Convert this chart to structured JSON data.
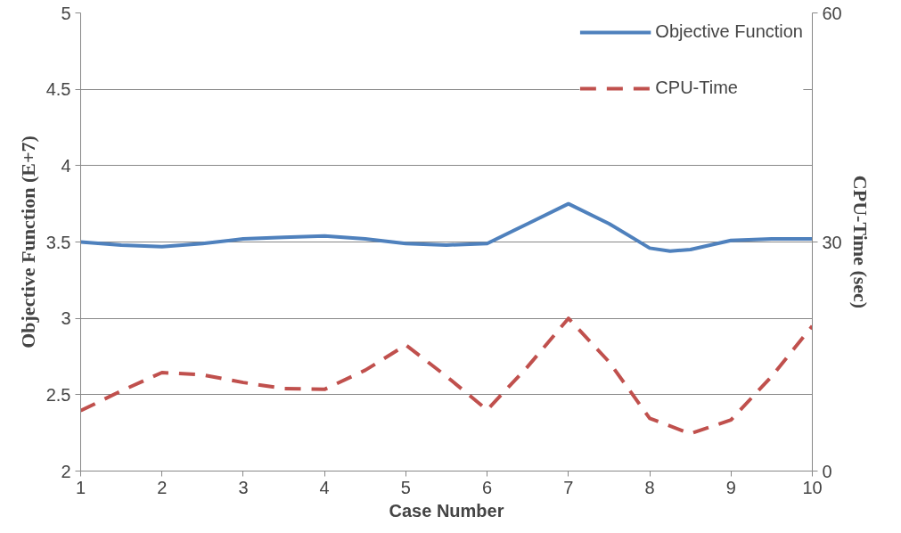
{
  "chart_data": {
    "type": "line",
    "xlabel": "Case Number",
    "ylabel": "Objective Function (E+7)",
    "y2label": "CPU-Time (sec)",
    "x": [
      1,
      1.5,
      2,
      2.5,
      3,
      3.5,
      4,
      4.5,
      5,
      5.5,
      6,
      6.5,
      7,
      7.5,
      8,
      8.25,
      8.5,
      9,
      9.5,
      10
    ],
    "series": [
      {
        "name": "Objective Function",
        "color": "#4f81bd",
        "line_style": "solid",
        "values": [
          3.5,
          3.48,
          3.47,
          3.49,
          3.52,
          3.53,
          3.54,
          3.52,
          3.49,
          3.48,
          3.49,
          3.62,
          3.75,
          3.62,
          3.46,
          3.44,
          3.45,
          3.51,
          3.52,
          3.52
        ]
      },
      {
        "name": "CPU-Time",
        "color": "#c0504d",
        "line_style": "dashed",
        "axis": "y2",
        "x": [
          1,
          1.5,
          2,
          2.5,
          3,
          3.5,
          4,
          4.5,
          5,
          5.5,
          6,
          6.5,
          7,
          7.5,
          8,
          8.5,
          9,
          9.5,
          10
        ],
        "values": [
          7.9,
          10.5,
          12.9,
          12.6,
          11.6,
          10.8,
          10.7,
          13.2,
          16.5,
          12.4,
          8.0,
          13.7,
          20.0,
          14.3,
          6.9,
          4.9,
          6.7,
          12.4,
          19.0
        ]
      }
    ],
    "xlim": [
      1,
      10
    ],
    "xticks": [
      1,
      2,
      3,
      4,
      5,
      6,
      7,
      8,
      9,
      10
    ],
    "ylim": [
      2,
      5
    ],
    "yticks": [
      2,
      2.5,
      3,
      3.5,
      4,
      4.5,
      5
    ],
    "y2lim": [
      0,
      60
    ],
    "y2ticks": [
      0,
      30,
      60
    ],
    "grid": "y",
    "legend": "top right"
  }
}
